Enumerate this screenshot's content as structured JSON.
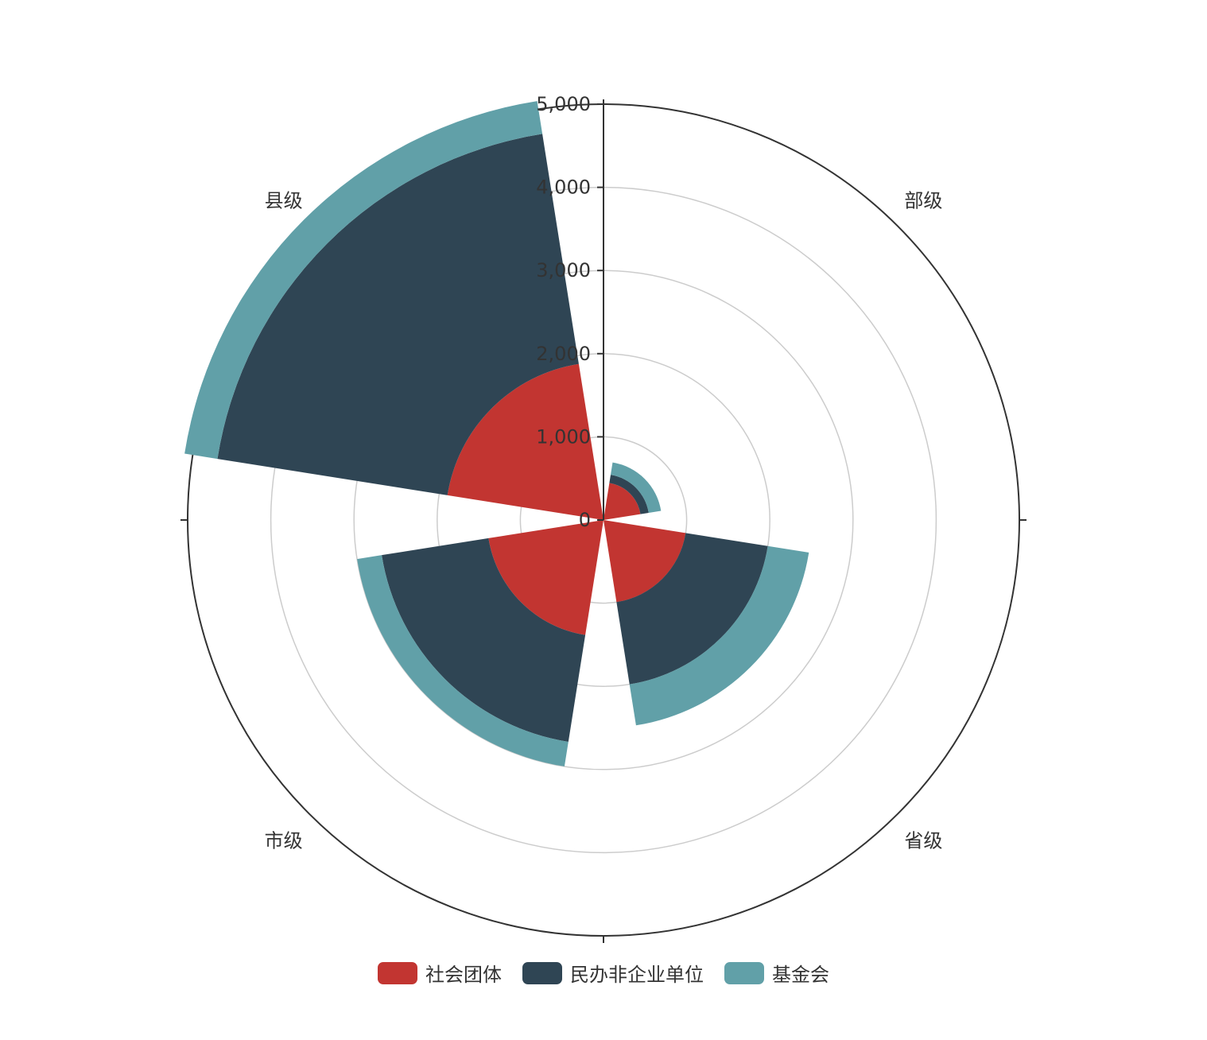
{
  "chart_data": {
    "type": "polar-stacked-bar",
    "categories": [
      "部级",
      "省级",
      "市级",
      "县级"
    ],
    "series": [
      {
        "name": "社会团体",
        "values": [
          450,
          1000,
          1400,
          1900
        ],
        "color": "#c23531"
      },
      {
        "name": "民办非企业单位",
        "values": [
          100,
          1000,
          1300,
          2800
        ],
        "color": "#2f4554"
      },
      {
        "name": "基金会",
        "values": [
          150,
          500,
          300,
          400
        ],
        "color": "#61a0a8"
      }
    ],
    "radius_axis": {
      "min": 0,
      "max": 5000,
      "ticks": [
        0,
        1000,
        2000,
        3000,
        4000,
        5000
      ],
      "tick_labels": [
        "0",
        "1,000",
        "2,000",
        "3,000",
        "4,000",
        "5,000"
      ]
    },
    "grid": true,
    "legend_position": "bottom"
  }
}
